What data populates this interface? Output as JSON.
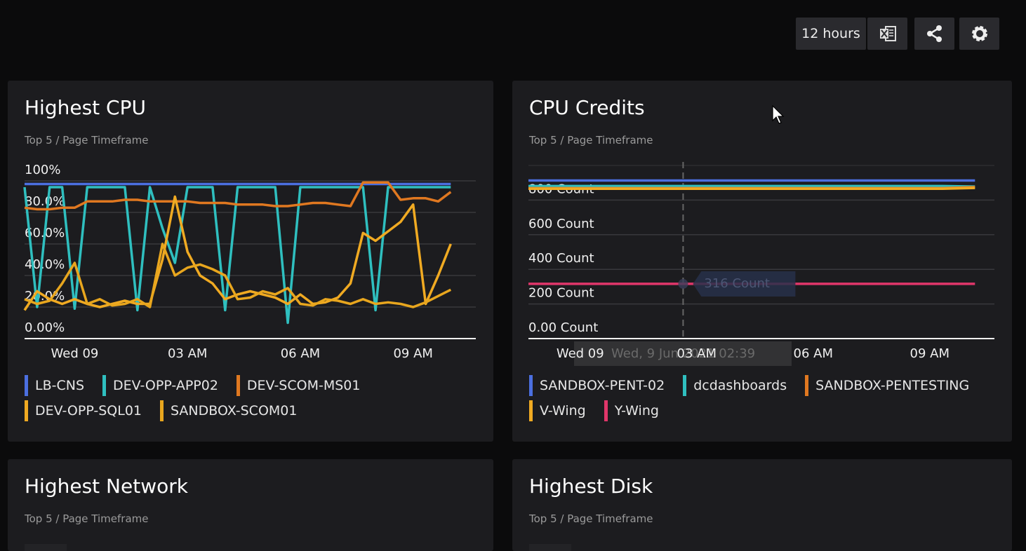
{
  "toolbar": {
    "timeframe": "12 hours"
  },
  "panels": [
    {
      "title": "Highest CPU",
      "subtitle": "Top 5 / Page Timeframe",
      "chart": {
        "type": "line",
        "x": [
          -80,
          -60,
          -40,
          -20,
          0,
          20,
          40,
          60,
          80,
          100,
          120,
          140,
          160,
          180,
          200,
          220,
          240,
          260,
          280,
          300,
          320,
          340,
          360,
          380,
          400,
          420,
          440,
          460,
          480,
          500,
          520,
          540,
          560,
          580,
          600
        ],
        "xlim": [
          -80,
          640
        ],
        "xticks": [
          {
            "value": 0,
            "label": "Wed 09"
          },
          {
            "value": 180,
            "label": "03 AM"
          },
          {
            "value": 360,
            "label": "06 AM"
          },
          {
            "value": 540,
            "label": "09 AM"
          }
        ],
        "ylim": [
          0,
          100
        ],
        "yticks": [
          {
            "value": 0,
            "label": "0.00%"
          },
          {
            "value": 20,
            "label": "20.0%"
          },
          {
            "value": 40,
            "label": "40.0%"
          },
          {
            "value": 60,
            "label": "60.0%"
          },
          {
            "value": 80,
            "label": "80.0%"
          },
          {
            "value": 100,
            "label": "100%"
          }
        ],
        "grid": true,
        "series": [
          {
            "name": "LB-CNS",
            "color": "#4b6fe0",
            "values": [
              98,
              98,
              98,
              98,
              98,
              98,
              98,
              98,
              98,
              98,
              98,
              98,
              98,
              98,
              98,
              98,
              98,
              98,
              98,
              98,
              98,
              98,
              98,
              98,
              98,
              98,
              98,
              98,
              98,
              98,
              98,
              98,
              98,
              98,
              98
            ]
          },
          {
            "name": "DEV-OPP-APP02",
            "color": "#2fbfbf",
            "values": [
              96,
              20,
              96,
              96,
              19,
              96,
              96,
              96,
              96,
              18,
              96,
              70,
              48,
              96,
              96,
              96,
              18,
              96,
              96,
              96,
              96,
              10,
              96,
              96,
              96,
              96,
              96,
              96,
              18,
              96,
              96,
              96,
              96,
              96,
              96
            ]
          },
          {
            "name": "DEV-SCOM-MS01",
            "color": "#e07820",
            "values": [
              83,
              82,
              82,
              83,
              83,
              87,
              87,
              87,
              88,
              88,
              87,
              87,
              87,
              87,
              86,
              86,
              86,
              85,
              85,
              85,
              84,
              84,
              85,
              86,
              86,
              85,
              84,
              99,
              99,
              99,
              88,
              89,
              89,
              87,
              93
            ]
          },
          {
            "name": "DEV-OPP-SQL01",
            "color": "#f0aa22",
            "values": [
              18,
              30,
              25,
              22,
              25,
              22,
              20,
              22,
              24,
              22,
              22,
              50,
              90,
              55,
              40,
              35,
              25,
              28,
              30,
              28,
              26,
              22,
              28,
              22,
              23,
              26,
              35,
              67,
              62,
              68,
              74,
              85,
              22,
              40,
              60
            ]
          },
          {
            "name": "SANDBOX-SCOM01",
            "color": "#e8a61e",
            "values": [
              25,
              22,
              24,
              35,
              48,
              22,
              25,
              21,
              22,
              25,
              20,
              60,
              40,
              45,
              47,
              44,
              40,
              25,
              26,
              30,
              28,
              32,
              22,
              21,
              25,
              24,
              22,
              25,
              22,
              23,
              22,
              20,
              23,
              27,
              31
            ]
          }
        ]
      }
    },
    {
      "title": "CPU Credits",
      "subtitle": "Top 5 / Page Timeframe",
      "chart": {
        "type": "line",
        "x": [
          -80,
          560,
          610
        ],
        "xlim": [
          -80,
          640
        ],
        "xticks": [
          {
            "value": 0,
            "label": "Wed 09"
          },
          {
            "value": 180,
            "label": "03 AM"
          },
          {
            "value": 360,
            "label": "06 AM"
          },
          {
            "value": 540,
            "label": "09 AM"
          }
        ],
        "ylim": [
          0,
          1000
        ],
        "yticks": [
          {
            "value": 0,
            "label": "0.00 Count"
          },
          {
            "value": 200,
            "label": "200 Count"
          },
          {
            "value": 400,
            "label": "400 Count"
          },
          {
            "value": 600,
            "label": "600 Count"
          },
          {
            "value": 800,
            "label": "800 Count"
          }
        ],
        "grid": true,
        "series": [
          {
            "name": "SANDBOX-PENT-02",
            "color": "#4b6fe0",
            "values": [
              913,
              913,
              913
            ]
          },
          {
            "name": "dcdashboards",
            "color": "#2fbfbf",
            "values": [
              881,
              881,
              878
            ]
          },
          {
            "name": "SANDBOX-PENTESTING",
            "color": "#e07820",
            "values": [
              869,
              869,
              875
            ]
          },
          {
            "name": "V-Wing",
            "color": "#f0aa22",
            "values": [
              865,
              865,
              870
            ]
          },
          {
            "name": "Y-Wing",
            "color": "#e0366a",
            "values": [
              316,
              316,
              316
            ]
          }
        ],
        "tooltip": {
          "x": 159,
          "value": 316,
          "label": "316 Count"
        },
        "crosshair_label": "Wed, 9 Jun 2021 02:39"
      }
    },
    {
      "title": "Highest Network",
      "subtitle": "Top 5 / Page Timeframe"
    },
    {
      "title": "Highest Disk",
      "subtitle": "Top 5 / Page Timeframe"
    }
  ]
}
